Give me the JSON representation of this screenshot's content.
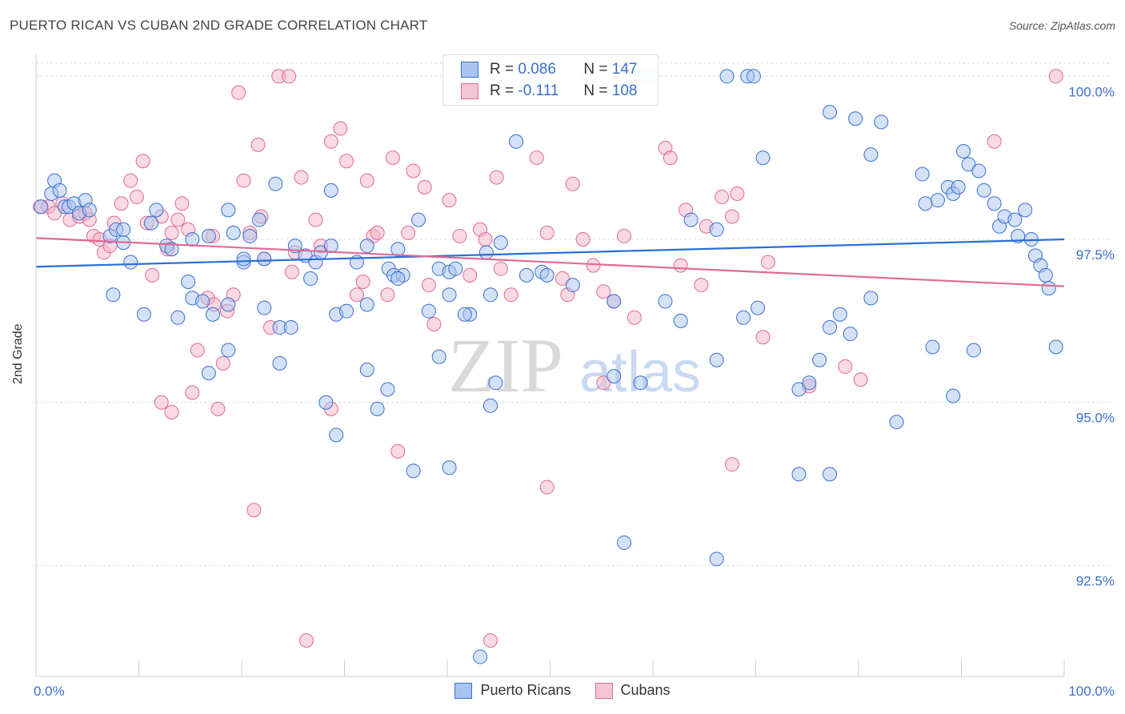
{
  "title": "PUERTO RICAN VS CUBAN 2ND GRADE CORRELATION CHART",
  "source": "Source: ZipAtlas.com",
  "watermark": {
    "zip": "ZIP",
    "atlas": "atlas"
  },
  "colors": {
    "blue": "#3a6fd0",
    "blue_fill": "#a9c4f0",
    "blue_line": "#2a6fd4",
    "pink": "#e06a95",
    "pink_fill": "#f3b4c8",
    "pink_line": "#e06a95",
    "grid": "#dddddd",
    "axis_text": "#3a6fd0"
  },
  "legend": {
    "rows": [
      {
        "r_label": "R = ",
        "r_value": "0.086",
        "n_label": "N = ",
        "n_value": "147",
        "color": "blue"
      },
      {
        "r_label": "R = ",
        "r_value": "-0.111",
        "n_label": "N = ",
        "n_value": "108",
        "color": "pink"
      }
    ]
  },
  "bottom_legend": [
    {
      "label": "Puerto Ricans",
      "color": "blue"
    },
    {
      "label": "Cubans",
      "color": "pink"
    }
  ],
  "chart_data": {
    "type": "scatter",
    "xlabel": "",
    "ylabel": "2nd Grade",
    "xlim": [
      0,
      100
    ],
    "ylim": [
      90.8,
      100.2
    ],
    "x_ticks_labels": [
      "0.0%",
      "100.0%"
    ],
    "y_ticks": [
      92.5,
      95.0,
      97.5,
      100.0
    ],
    "y_tick_labels": [
      "92.5%",
      "95.0%",
      "97.5%",
      "100.0%"
    ],
    "grid": true,
    "series": [
      {
        "name": "Puerto Ricans",
        "trend": {
          "x": [
            0,
            100
          ],
          "y": [
            97.08,
            97.5
          ]
        },
        "points": [
          [
            0.5,
            98.0
          ],
          [
            1.5,
            98.2
          ],
          [
            1.8,
            98.4
          ],
          [
            2.3,
            98.25
          ],
          [
            2.8,
            98.0
          ],
          [
            3.2,
            98.0
          ],
          [
            3.7,
            98.05
          ],
          [
            4.2,
            97.9
          ],
          [
            4.8,
            98.1
          ],
          [
            5.2,
            97.95
          ],
          [
            7.2,
            97.55
          ],
          [
            7.8,
            97.65
          ],
          [
            8.5,
            97.65
          ],
          [
            9.2,
            97.15
          ],
          [
            11.2,
            97.75
          ],
          [
            11.7,
            97.95
          ],
          [
            12.7,
            97.4
          ],
          [
            13.2,
            97.35
          ],
          [
            15.2,
            97.5
          ],
          [
            16.8,
            97.55
          ],
          [
            18.7,
            97.95
          ],
          [
            19.2,
            97.6
          ],
          [
            20.2,
            97.15
          ],
          [
            20.8,
            97.55
          ],
          [
            21.7,
            97.8
          ],
          [
            22.2,
            97.2
          ],
          [
            23.3,
            98.35
          ],
          [
            25.2,
            97.4
          ],
          [
            26.2,
            97.25
          ],
          [
            27.2,
            97.15
          ],
          [
            27.7,
            97.3
          ],
          [
            28.7,
            98.25
          ],
          [
            29.2,
            96.35
          ],
          [
            31.2,
            97.15
          ],
          [
            32.2,
            97.4
          ],
          [
            34.3,
            97.05
          ],
          [
            34.8,
            96.95
          ],
          [
            35.7,
            96.95
          ],
          [
            37.2,
            97.8
          ],
          [
            39.2,
            97.05
          ],
          [
            40.2,
            97.0
          ],
          [
            40.8,
            97.05
          ],
          [
            42.2,
            96.35
          ],
          [
            43.8,
            97.3
          ],
          [
            45.2,
            97.45
          ],
          [
            8.5,
            97.45
          ],
          [
            7.5,
            96.65
          ],
          [
            10.5,
            96.35
          ],
          [
            13.8,
            96.3
          ],
          [
            14.8,
            96.85
          ],
          [
            15.2,
            96.6
          ],
          [
            16.2,
            96.55
          ],
          [
            17.2,
            96.35
          ],
          [
            18.7,
            96.5
          ],
          [
            22.2,
            96.45
          ],
          [
            23.7,
            96.15
          ],
          [
            24.8,
            96.15
          ],
          [
            26.7,
            96.9
          ],
          [
            28.7,
            97.4
          ],
          [
            30.2,
            96.4
          ],
          [
            32.2,
            96.5
          ],
          [
            35.2,
            96.9
          ],
          [
            38.2,
            96.4
          ],
          [
            40.2,
            96.65
          ],
          [
            41.7,
            96.35
          ],
          [
            44.2,
            96.65
          ],
          [
            47.7,
            96.95
          ],
          [
            52.2,
            96.8
          ],
          [
            56.2,
            96.55
          ],
          [
            61.2,
            96.55
          ],
          [
            62.7,
            96.25
          ],
          [
            63.7,
            97.8
          ],
          [
            66.2,
            97.65
          ],
          [
            68.8,
            96.3
          ],
          [
            70.2,
            96.45
          ],
          [
            70.7,
            98.75
          ],
          [
            16.8,
            95.45
          ],
          [
            18.7,
            95.8
          ],
          [
            20.2,
            97.2
          ],
          [
            23.7,
            95.6
          ],
          [
            28.2,
            95.0
          ],
          [
            29.2,
            94.5
          ],
          [
            32.2,
            95.5
          ],
          [
            33.2,
            94.9
          ],
          [
            34.2,
            95.2
          ],
          [
            35.2,
            97.35
          ],
          [
            36.7,
            93.95
          ],
          [
            39.2,
            95.7
          ],
          [
            40.2,
            94.0
          ],
          [
            44.7,
            95.3
          ],
          [
            44.2,
            94.95
          ],
          [
            56.2,
            95.4
          ],
          [
            58.8,
            95.3
          ],
          [
            66.2,
            95.65
          ],
          [
            74.2,
            95.2
          ],
          [
            75.2,
            95.3
          ],
          [
            76.2,
            95.65
          ],
          [
            89.2,
            95.1
          ],
          [
            74.2,
            93.9
          ],
          [
            77.2,
            93.9
          ],
          [
            77.2,
            96.15
          ],
          [
            78.2,
            96.35
          ],
          [
            79.2,
            96.05
          ],
          [
            81.2,
            96.6
          ],
          [
            83.7,
            94.7
          ],
          [
            87.2,
            95.85
          ],
          [
            91.2,
            95.8
          ],
          [
            46.7,
            99.0
          ],
          [
            48.7,
            100.0
          ],
          [
            53.8,
            100.0
          ],
          [
            57.7,
            100.0
          ],
          [
            59.2,
            100.0
          ],
          [
            59.8,
            100.0
          ],
          [
            67.2,
            100.0
          ],
          [
            69.2,
            100.0
          ],
          [
            69.8,
            100.0
          ],
          [
            77.2,
            99.45
          ],
          [
            79.7,
            99.35
          ],
          [
            81.2,
            98.8
          ],
          [
            82.2,
            99.3
          ],
          [
            86.2,
            98.5
          ],
          [
            86.5,
            98.05
          ],
          [
            87.7,
            98.1
          ],
          [
            88.7,
            98.3
          ],
          [
            89.2,
            98.2
          ],
          [
            89.7,
            98.3
          ],
          [
            90.2,
            98.85
          ],
          [
            90.7,
            98.65
          ],
          [
            91.7,
            98.55
          ],
          [
            92.2,
            98.25
          ],
          [
            93.2,
            98.05
          ],
          [
            93.7,
            97.7
          ],
          [
            94.2,
            97.85
          ],
          [
            95.2,
            97.8
          ],
          [
            95.5,
            97.55
          ],
          [
            96.2,
            97.95
          ],
          [
            96.8,
            97.5
          ],
          [
            97.2,
            97.25
          ],
          [
            97.7,
            97.1
          ],
          [
            98.2,
            96.95
          ],
          [
            98.5,
            96.75
          ],
          [
            99.2,
            95.85
          ],
          [
            57.2,
            92.85
          ],
          [
            66.2,
            92.6
          ],
          [
            43.2,
            91.1
          ],
          [
            49.2,
            97.0
          ],
          [
            49.7,
            96.95
          ]
        ]
      },
      {
        "name": "Cubans",
        "trend": {
          "x": [
            0,
            100
          ],
          "y": [
            97.52,
            96.78
          ]
        },
        "points": [
          [
            0.4,
            98.0
          ],
          [
            1.2,
            98.0
          ],
          [
            1.8,
            97.9
          ],
          [
            2.6,
            98.05
          ],
          [
            3.3,
            97.8
          ],
          [
            4.2,
            97.85
          ],
          [
            4.8,
            97.9
          ],
          [
            5.2,
            97.8
          ],
          [
            5.6,
            97.55
          ],
          [
            6.2,
            97.5
          ],
          [
            6.6,
            97.3
          ],
          [
            7.2,
            97.4
          ],
          [
            7.6,
            97.75
          ],
          [
            8.3,
            98.05
          ],
          [
            9.2,
            98.4
          ],
          [
            9.8,
            98.15
          ],
          [
            10.4,
            98.7
          ],
          [
            10.8,
            97.75
          ],
          [
            11.3,
            96.95
          ],
          [
            12.2,
            97.85
          ],
          [
            12.8,
            97.35
          ],
          [
            13.2,
            97.6
          ],
          [
            13.8,
            97.8
          ],
          [
            14.2,
            98.05
          ],
          [
            14.8,
            97.65
          ],
          [
            15.7,
            95.8
          ],
          [
            16.7,
            96.6
          ],
          [
            17.3,
            96.5
          ],
          [
            18.2,
            95.6
          ],
          [
            18.6,
            96.4
          ],
          [
            19.2,
            96.65
          ],
          [
            19.7,
            99.75
          ],
          [
            20.2,
            98.4
          ],
          [
            20.8,
            97.6
          ],
          [
            21.6,
            98.95
          ],
          [
            21.9,
            97.85
          ],
          [
            22.2,
            97.2
          ],
          [
            22.8,
            96.15
          ],
          [
            23.6,
            100.0
          ],
          [
            24.6,
            100.0
          ],
          [
            24.9,
            97.0
          ],
          [
            25.2,
            97.3
          ],
          [
            25.8,
            98.45
          ],
          [
            26.3,
            91.35
          ],
          [
            27.2,
            97.8
          ],
          [
            27.7,
            97.4
          ],
          [
            28.7,
            99.0
          ],
          [
            29.6,
            99.2
          ],
          [
            30.2,
            98.7
          ],
          [
            31.2,
            96.65
          ],
          [
            31.8,
            96.85
          ],
          [
            32.2,
            98.4
          ],
          [
            32.8,
            97.55
          ],
          [
            33.2,
            97.6
          ],
          [
            34.2,
            96.65
          ],
          [
            34.7,
            98.75
          ],
          [
            36.2,
            97.6
          ],
          [
            36.7,
            98.55
          ],
          [
            37.8,
            98.3
          ],
          [
            38.2,
            96.8
          ],
          [
            40.2,
            98.1
          ],
          [
            41.2,
            97.55
          ],
          [
            42.2,
            96.95
          ],
          [
            43.2,
            97.65
          ],
          [
            43.7,
            97.5
          ],
          [
            44.8,
            98.45
          ],
          [
            45.2,
            97.05
          ],
          [
            46.2,
            96.65
          ],
          [
            48.7,
            98.75
          ],
          [
            49.7,
            97.6
          ],
          [
            51.2,
            96.9
          ],
          [
            51.7,
            96.65
          ],
          [
            52.2,
            98.35
          ],
          [
            53.2,
            97.5
          ],
          [
            54.2,
            97.1
          ],
          [
            55.2,
            96.7
          ],
          [
            56.2,
            96.55
          ],
          [
            57.2,
            97.55
          ],
          [
            58.2,
            96.3
          ],
          [
            61.2,
            98.9
          ],
          [
            61.7,
            98.75
          ],
          [
            62.7,
            97.1
          ],
          [
            63.2,
            97.95
          ],
          [
            64.7,
            96.8
          ],
          [
            65.2,
            97.7
          ],
          [
            66.7,
            98.15
          ],
          [
            67.7,
            97.85
          ],
          [
            68.2,
            98.2
          ],
          [
            70.7,
            96.0
          ],
          [
            71.2,
            97.15
          ],
          [
            12.2,
            95.0
          ],
          [
            13.2,
            94.85
          ],
          [
            15.2,
            95.15
          ],
          [
            17.7,
            94.9
          ],
          [
            21.2,
            93.35
          ],
          [
            28.7,
            94.9
          ],
          [
            35.2,
            94.25
          ],
          [
            38.7,
            96.2
          ],
          [
            49.7,
            93.7
          ],
          [
            55.2,
            95.3
          ],
          [
            67.7,
            94.05
          ],
          [
            78.7,
            95.55
          ],
          [
            80.2,
            95.35
          ],
          [
            75.2,
            95.25
          ],
          [
            93.2,
            99.0
          ],
          [
            99.2,
            100.0
          ],
          [
            44.2,
            91.35
          ],
          [
            17.2,
            97.55
          ]
        ]
      }
    ]
  }
}
